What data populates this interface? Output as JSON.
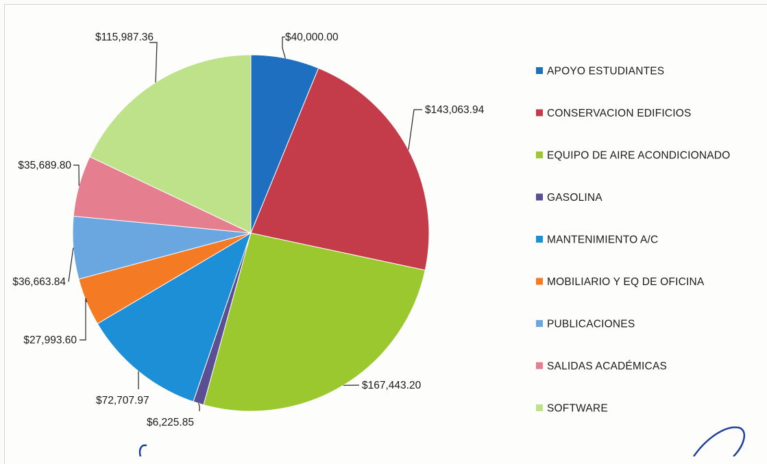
{
  "chart_data": {
    "type": "pie",
    "title": "",
    "slices": [
      {
        "name": "APOYO ESTUDIANTES",
        "value": 40000.0,
        "label": "$40,000.00",
        "color": "#1f6fc1"
      },
      {
        "name": "CONSERVACION EDIFICIOS",
        "value": 143063.94,
        "label": "$143,063.94",
        "color": "#c43c4a"
      },
      {
        "name": "EQUIPO DE AIRE ACONDICIONADO",
        "value": 167443.2,
        "label": "$167,443.20",
        "color": "#9bc82e"
      },
      {
        "name": "GASOLINA",
        "value": 6225.85,
        "label": "$6,225.85",
        "color": "#5a4f95"
      },
      {
        "name": "MANTENIMIENTO A/C",
        "value": 72707.97,
        "label": "$72,707.97",
        "color": "#1c8fd6"
      },
      {
        "name": "MOBILIARIO Y EQ DE OFICINA",
        "value": 27993.6,
        "label": "$27,993.60",
        "color": "#f47a24"
      },
      {
        "name": "PUBLICACIONES",
        "value": 36663.84,
        "label": "$36,663.84",
        "color": "#6aa7e0"
      },
      {
        "name": "SALIDAS ACADÉMICAS",
        "value": 35689.8,
        "label": "$35,689.80",
        "color": "#e57f8f"
      },
      {
        "name": "SOFTWARE",
        "value": 115987.36,
        "label": "$115,987.36",
        "color": "#bde28a"
      }
    ],
    "legend_position": "right",
    "start": "12 o'clock",
    "direction": "clockwise"
  }
}
